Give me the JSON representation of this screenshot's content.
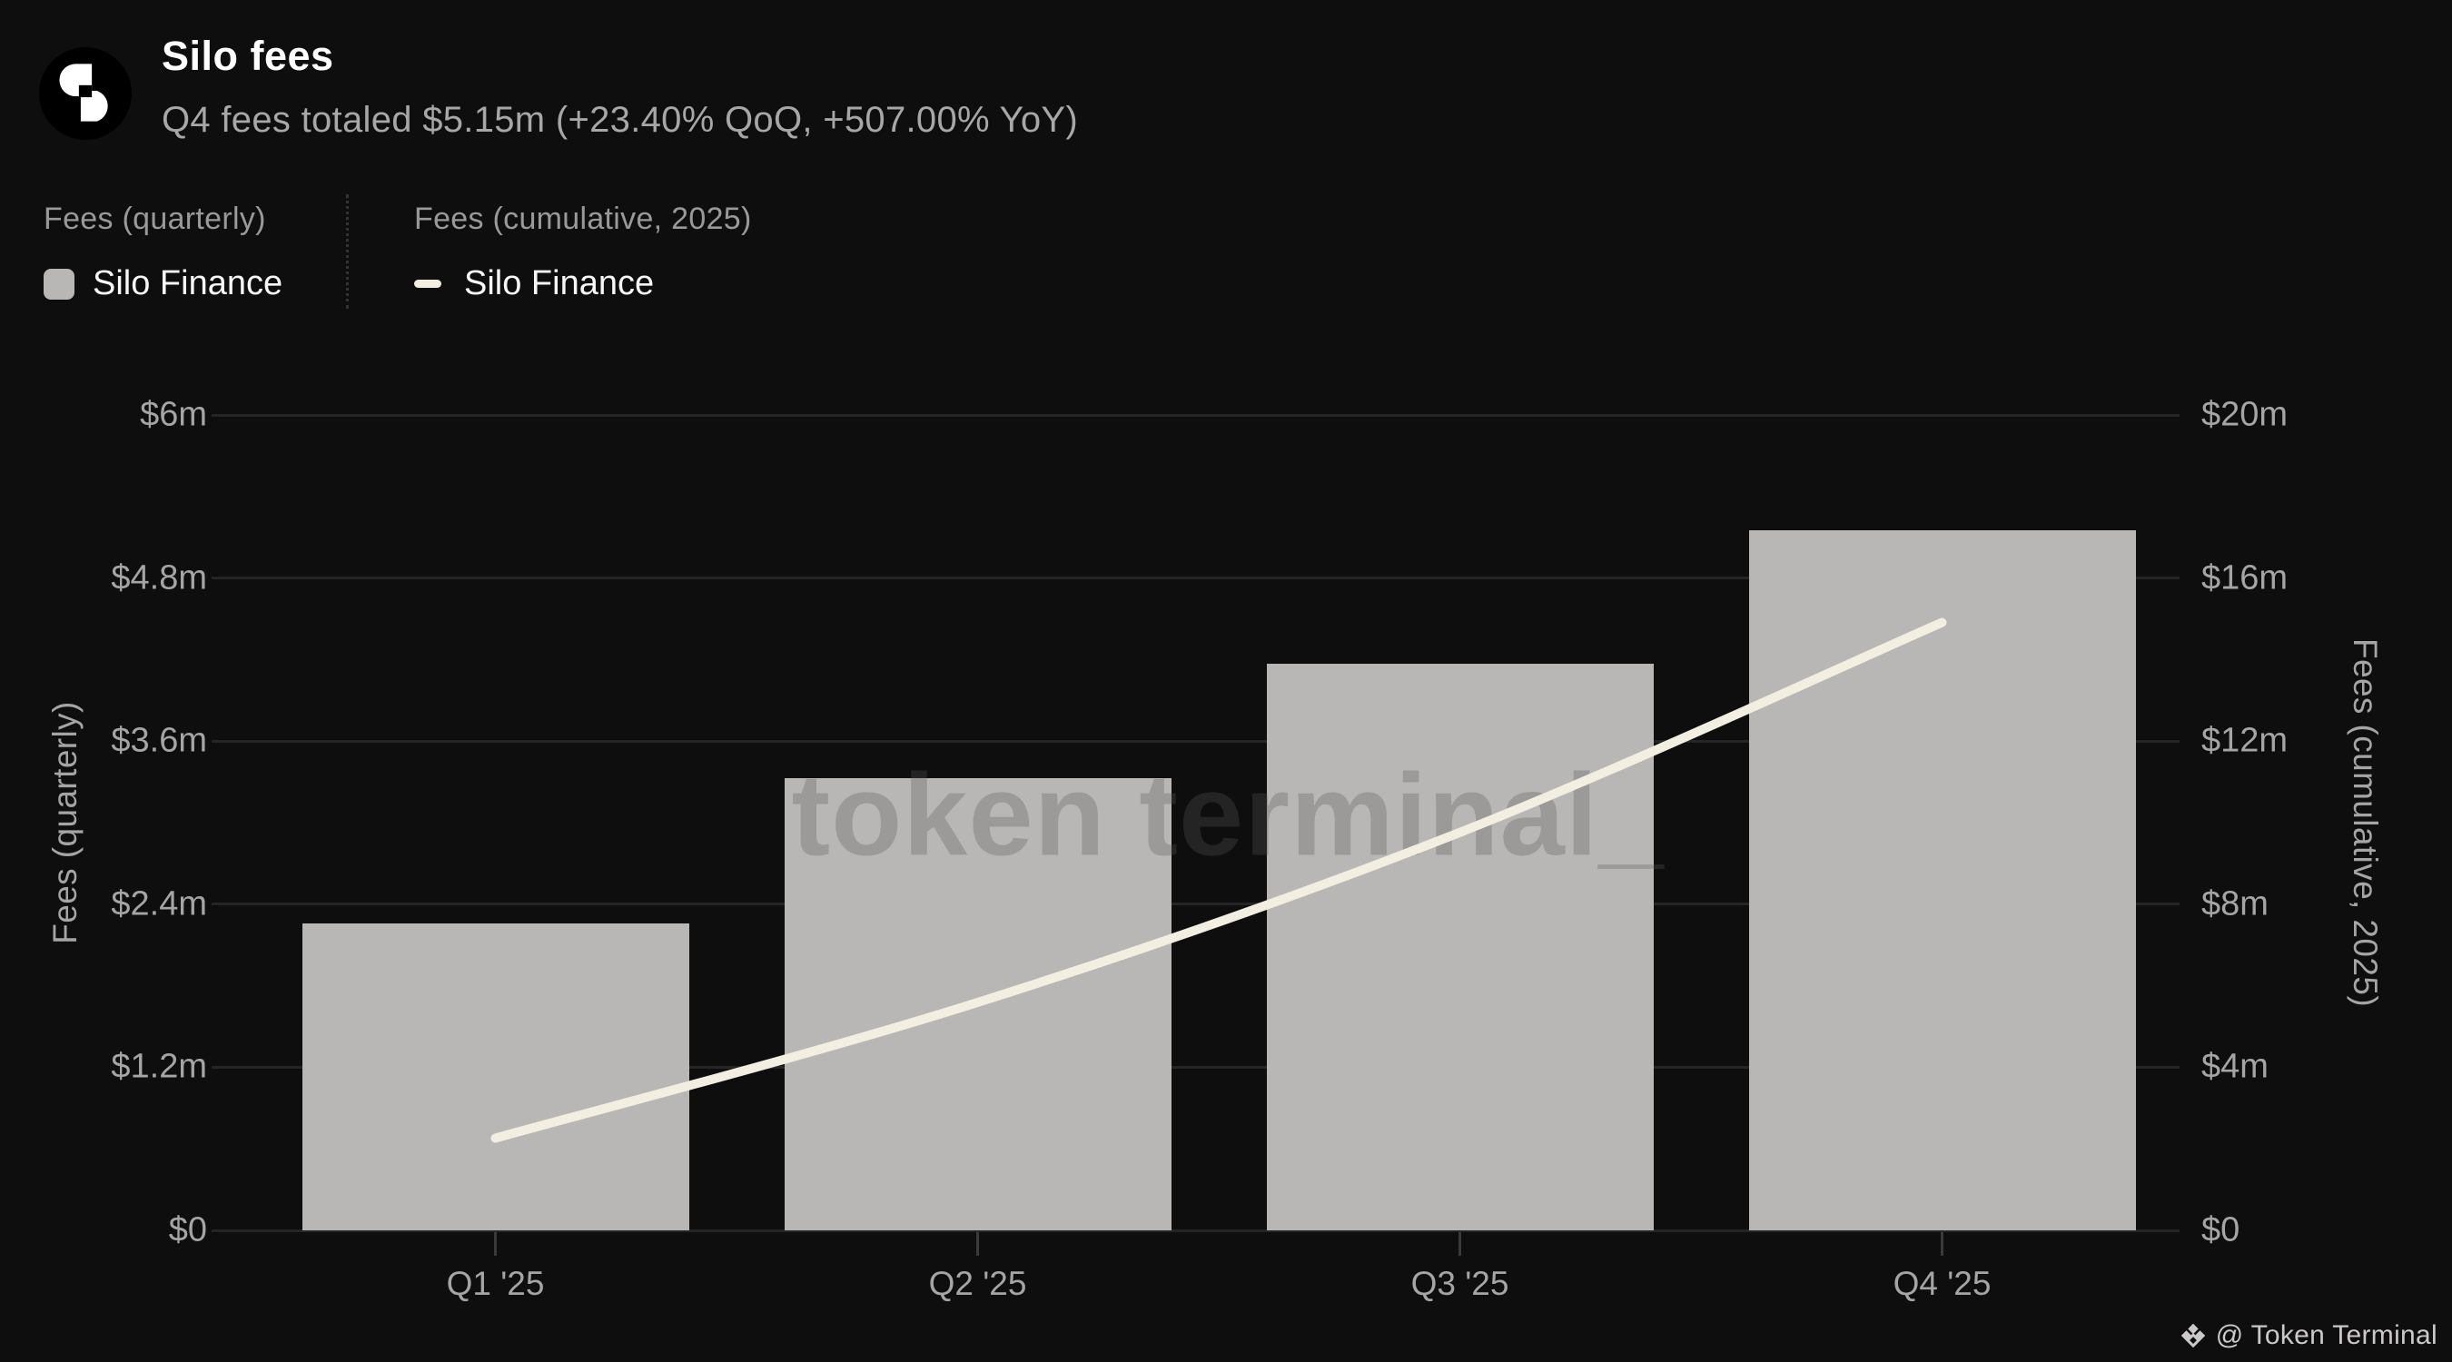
{
  "header": {
    "title": "Silo fees",
    "subtitle": "Q4 fees totaled $5.15m (+23.40% QoQ, +507.00% YoY)"
  },
  "legend": {
    "quarterly": {
      "title": "Fees (quarterly)",
      "label": "Silo Finance"
    },
    "cumulative": {
      "title": "Fees (cumulative, 2025)",
      "label": "Silo Finance"
    }
  },
  "watermark": "token terminal_",
  "credit": "@ Token Terminal",
  "chart_data": {
    "type": "bar",
    "categories": [
      "Q1 '25",
      "Q2 '25",
      "Q3 '25",
      "Q4 '25"
    ],
    "series": [
      {
        "name": "Fees (quarterly)",
        "type": "bar",
        "axis": "left",
        "unit": "USD millions",
        "values": [
          2.26,
          3.33,
          4.17,
          5.15
        ]
      },
      {
        "name": "Fees (cumulative, 2025)",
        "type": "line",
        "axis": "right",
        "unit": "USD millions",
        "values": [
          2.26,
          5.59,
          9.76,
          14.91
        ]
      }
    ],
    "left_axis": {
      "label": "Fees (quarterly)",
      "min": 0,
      "max": 6,
      "ticks": [
        "$0",
        "$1.2m",
        "$2.4m",
        "$3.6m",
        "$4.8m",
        "$6m"
      ]
    },
    "right_axis": {
      "label": "Fees (cumulative, 2025)",
      "min": 0,
      "max": 20,
      "ticks": [
        "$0",
        "$4m",
        "$8m",
        "$12m",
        "$16m",
        "$20m"
      ]
    },
    "grid": true,
    "legend_position": "top-left",
    "colors": {
      "bar": "#b8b7b5",
      "line": "#f2eee1",
      "background": "#0e0e0e",
      "grid": "#252525",
      "text_muted": "#a5a5a5",
      "text_bright": "#f7f7f7"
    }
  }
}
